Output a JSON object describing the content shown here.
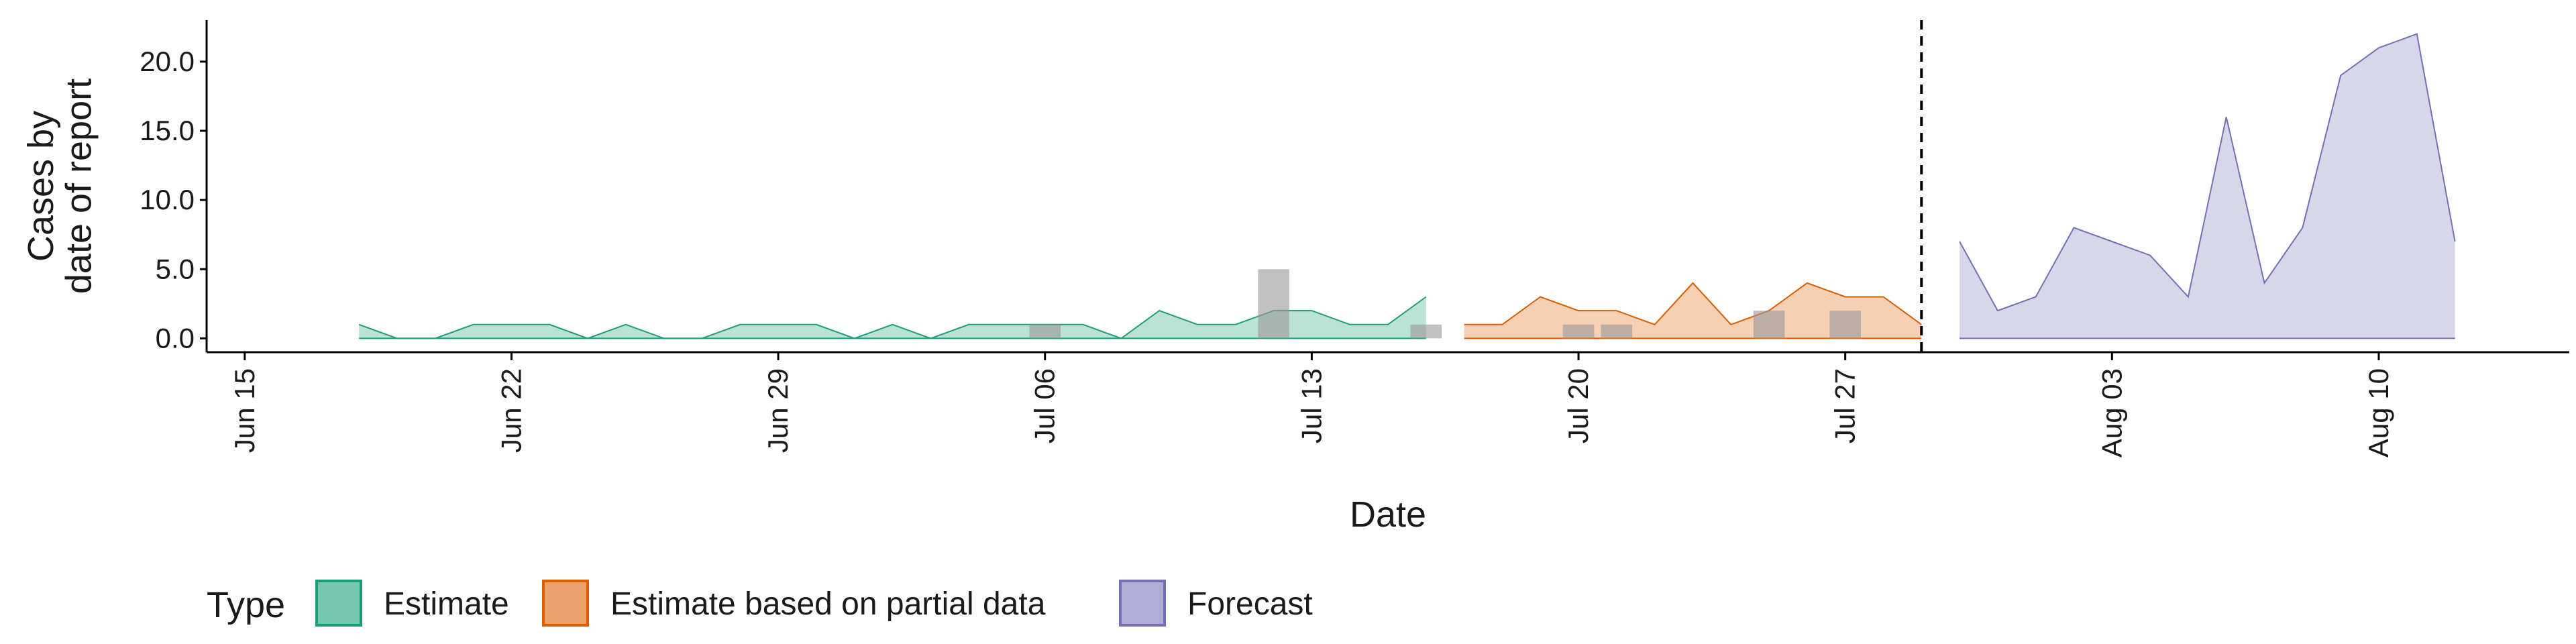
{
  "chart_data": {
    "type": "area",
    "title": "",
    "xlabel": "Date",
    "ylabel": [
      "Cases by",
      "date of report"
    ],
    "xlim": [
      "2020-06-14",
      "2020-08-15"
    ],
    "ylim": [
      -1,
      23
    ],
    "y_ticks": [
      0,
      5,
      10,
      15,
      20
    ],
    "y_tick_labels": [
      "0.0",
      "5.0",
      "10.0",
      "15.0",
      "20.0"
    ],
    "x_ticks": [
      "2020-06-15",
      "2020-06-22",
      "2020-06-29",
      "2020-07-06",
      "2020-07-13",
      "2020-07-20",
      "2020-07-27",
      "2020-08-03",
      "2020-08-10"
    ],
    "x_tick_labels": [
      "Jun 15",
      "Jun 22",
      "Jun 29",
      "Jul 06",
      "Jul 13",
      "Jul 20",
      "Jul 27",
      "Aug 03",
      "Aug 10"
    ],
    "grid": false,
    "vline_date": "2020-07-29",
    "legend": {
      "title": "Type",
      "position": "bottom",
      "entries": [
        "Estimate",
        "Estimate based on partial data",
        "Forecast"
      ]
    },
    "colors": {
      "Estimate": {
        "fill": "#66c2a5",
        "stroke": "#1b9e77"
      },
      "Estimate based on partial data": {
        "fill": "#e8975a",
        "stroke": "#d95f02"
      },
      "Forecast": {
        "fill": "#a6a3d1",
        "stroke": "#7570b3"
      },
      "Reported": "#9a9a9a"
    },
    "series": [
      {
        "name": "Estimate",
        "x": [
          "2020-06-18",
          "2020-06-19",
          "2020-06-20",
          "2020-06-21",
          "2020-06-22",
          "2020-06-23",
          "2020-06-24",
          "2020-06-25",
          "2020-06-26",
          "2020-06-27",
          "2020-06-28",
          "2020-06-29",
          "2020-06-30",
          "2020-07-01",
          "2020-07-02",
          "2020-07-03",
          "2020-07-04",
          "2020-07-05",
          "2020-07-06",
          "2020-07-07",
          "2020-07-08",
          "2020-07-09",
          "2020-07-10",
          "2020-07-11",
          "2020-07-12",
          "2020-07-13",
          "2020-07-14",
          "2020-07-15",
          "2020-07-16"
        ],
        "values": [
          1,
          0,
          0,
          1,
          1,
          1,
          0,
          1,
          0,
          0,
          1,
          1,
          1,
          0,
          1,
          0,
          1,
          1,
          1,
          1,
          0,
          2,
          1,
          1,
          2,
          2,
          1,
          1,
          3
        ]
      },
      {
        "name": "Estimate based on partial data",
        "x": [
          "2020-07-17",
          "2020-07-18",
          "2020-07-19",
          "2020-07-20",
          "2020-07-21",
          "2020-07-22",
          "2020-07-23",
          "2020-07-24",
          "2020-07-25",
          "2020-07-26",
          "2020-07-27",
          "2020-07-28",
          "2020-07-29"
        ],
        "values": [
          1,
          1,
          3,
          2,
          2,
          1,
          4,
          1,
          2,
          4,
          3,
          3,
          1
        ]
      },
      {
        "name": "Forecast",
        "x": [
          "2020-07-30",
          "2020-07-31",
          "2020-08-01",
          "2020-08-02",
          "2020-08-03",
          "2020-08-04",
          "2020-08-05",
          "2020-08-06",
          "2020-08-07",
          "2020-08-08",
          "2020-08-09",
          "2020-08-10",
          "2020-08-11",
          "2020-08-12"
        ],
        "values": [
          7,
          2,
          3,
          8,
          7,
          6,
          3,
          16,
          4,
          8,
          19,
          21,
          22,
          7
        ]
      }
    ],
    "reported_bars": {
      "x": [
        "2020-07-06",
        "2020-07-12",
        "2020-07-16",
        "2020-07-20",
        "2020-07-21",
        "2020-07-25",
        "2020-07-27"
      ],
      "values": [
        1,
        5,
        1,
        1,
        1,
        2,
        2
      ]
    }
  }
}
